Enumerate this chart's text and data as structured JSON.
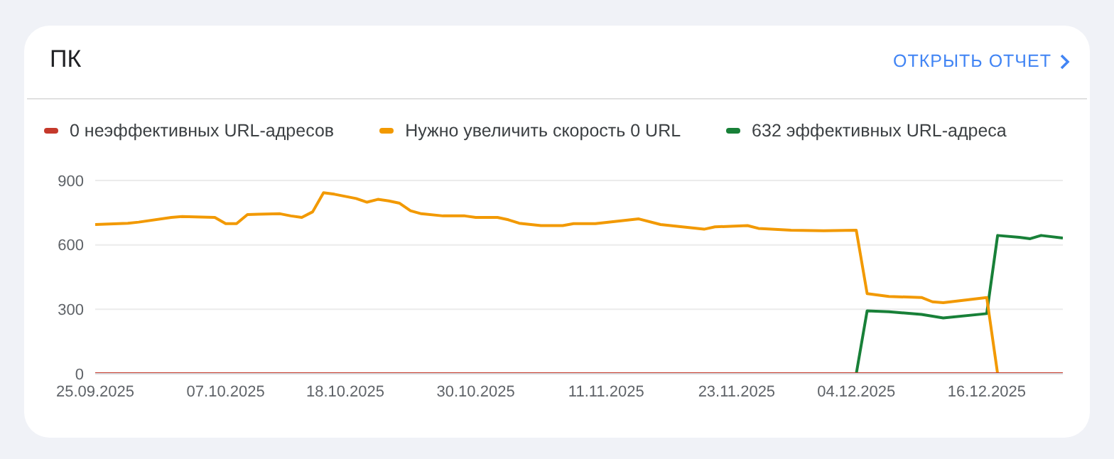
{
  "chart_data": {
    "type": "line",
    "title": "ПК",
    "annotations": [
      "ОТКРЫТЬ ОТЧЕТ"
    ],
    "series": [
      {
        "name": "0 неэффективных URL-адресов",
        "color": "#c5392b",
        "x": [
          "2025-09-25",
          "2025-12-23"
        ],
        "values": [
          0,
          0
        ]
      },
      {
        "name": "Нужно увеличить скорость 0 URL",
        "color": "#f29900",
        "x": [
          "2025-09-25",
          "2025-09-28",
          "2025-09-29",
          "2025-10-02",
          "2025-10-03",
          "2025-10-06",
          "2025-10-07",
          "2025-10-08",
          "2025-10-09",
          "2025-10-10",
          "2025-10-12",
          "2025-10-13",
          "2025-10-14",
          "2025-10-15",
          "2025-10-16",
          "2025-10-17",
          "2025-10-19",
          "2025-10-20",
          "2025-10-21",
          "2025-10-22",
          "2025-10-23",
          "2025-10-24",
          "2025-10-25",
          "2025-10-27",
          "2025-10-29",
          "2025-10-30",
          "2025-11-01",
          "2025-11-02",
          "2025-11-03",
          "2025-11-05",
          "2025-11-07",
          "2025-11-08",
          "2025-11-10",
          "2025-11-14",
          "2025-11-16",
          "2025-11-20",
          "2025-11-21",
          "2025-11-24",
          "2025-11-25",
          "2025-11-28",
          "2025-12-01",
          "2025-12-04",
          "2025-12-05",
          "2025-12-07",
          "2025-12-10",
          "2025-12-11",
          "2025-12-12",
          "2025-12-16",
          "2025-12-17"
        ],
        "values": [
          695,
          701,
          706,
          728,
          732,
          728,
          699,
          699,
          741,
          743,
          745,
          735,
          728,
          754,
          843,
          836,
          816,
          799,
          812,
          805,
          794,
          759,
          745,
          735,
          735,
          728,
          728,
          717,
          701,
          690,
          690,
          699,
          699,
          721,
          695,
          673,
          684,
          690,
          677,
          668,
          666,
          668,
          373,
          360,
          355,
          335,
          331,
          355,
          0
        ]
      },
      {
        "name": "632 эффективных URL-адреса",
        "color": "#188038",
        "x": [
          "2025-12-04",
          "2025-12-05",
          "2025-12-07",
          "2025-12-10",
          "2025-12-12",
          "2025-12-16",
          "2025-12-17",
          "2025-12-19",
          "2025-12-20",
          "2025-12-21",
          "2025-12-23"
        ],
        "values": [
          0,
          293,
          289,
          276,
          260,
          280,
          644,
          635,
          629,
          644,
          632
        ]
      }
    ],
    "xlim": [
      "2025-09-25",
      "2025-12-23"
    ],
    "xticks": [
      {
        "value": "2025-09-25",
        "label": "25.09.2025"
      },
      {
        "value": "2025-10-07",
        "label": "07.10.2025"
      },
      {
        "value": "2025-10-18",
        "label": "18.10.2025"
      },
      {
        "value": "2025-10-30",
        "label": "30.10.2025"
      },
      {
        "value": "2025-11-11",
        "label": "11.11.2025"
      },
      {
        "value": "2025-11-23",
        "label": "23.11.2025"
      },
      {
        "value": "2025-12-04",
        "label": "04.12.2025"
      },
      {
        "value": "2025-12-16",
        "label": "16.12.2025"
      }
    ],
    "ylim": [
      0,
      900
    ],
    "yticks": [
      0,
      300,
      600,
      900
    ],
    "grid": "y",
    "legend": "top left",
    "marker": "none",
    "line_style": "solid"
  }
}
